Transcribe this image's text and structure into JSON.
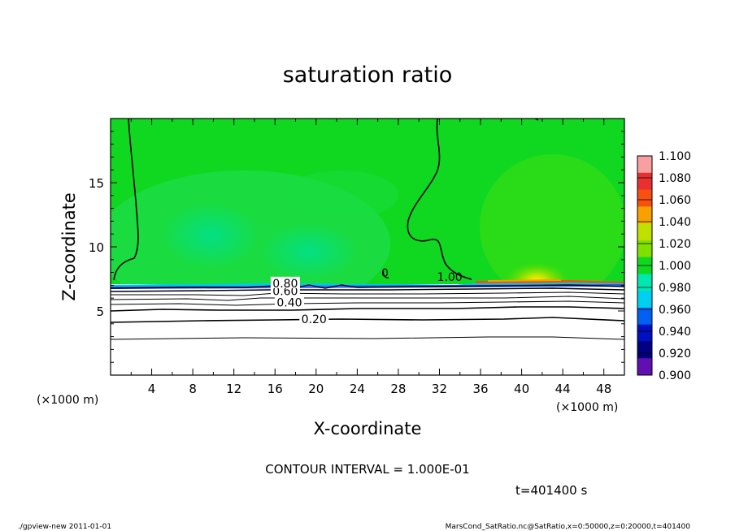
{
  "chart_data": {
    "type": "heatmap",
    "title": "saturation ratio",
    "xlabel": "X-coordinate",
    "ylabel": "Z-coordinate",
    "x_unit": "(×1000 m)",
    "z_unit": "(×1000 m)",
    "xlim": [
      0,
      50
    ],
    "ylim": [
      0,
      20
    ],
    "x_ticks": [
      4,
      8,
      12,
      16,
      20,
      24,
      28,
      32,
      36,
      40,
      44,
      48
    ],
    "y_ticks": [
      5,
      10,
      15
    ],
    "colorbar": {
      "levels": [
        "1.100",
        "1.080",
        "1.060",
        "1.040",
        "1.020",
        "1.000",
        "0.980",
        "0.960",
        "0.940",
        "0.920",
        "0.900"
      ],
      "colors": [
        "#f8a0a0",
        "#e83030",
        "#f85010",
        "#f8a000",
        "#c0e000",
        "#80e000",
        "#10d820",
        "#00e8b0",
        "#00d0f0",
        "#0060f0",
        "#0010c0",
        "#000080",
        "#6010b0"
      ]
    },
    "contour_labels": [
      {
        "text": "0.20",
        "x": 19.8,
        "z": 4.3
      },
      {
        "text": "0.40",
        "x": 17.4,
        "z": 5.6
      },
      {
        "text": "0.60",
        "x": 17.0,
        "z": 6.5
      },
      {
        "text": "0.80",
        "x": 17.0,
        "z": 7.1
      },
      {
        "text": "0",
        "x": 26.7,
        "z": 7.9
      },
      {
        "text": "1.00",
        "x": 33.0,
        "z": 7.6
      }
    ],
    "contour_interval": "CONTOUR INTERVAL = 1.000E-01",
    "time": "t=401400 s"
  },
  "footer": {
    "left": "./gpview-new  2011-01-01",
    "right": "MarsCond_SatRatio.nc@SatRatio,x=0:50000,z=0:20000,t=401400"
  },
  "colors": {
    "field_main": "#10d820",
    "field_light": "#30e040",
    "field_cool": "#00e070",
    "band_edge": "#00d0f0",
    "below": "#ffffff"
  }
}
